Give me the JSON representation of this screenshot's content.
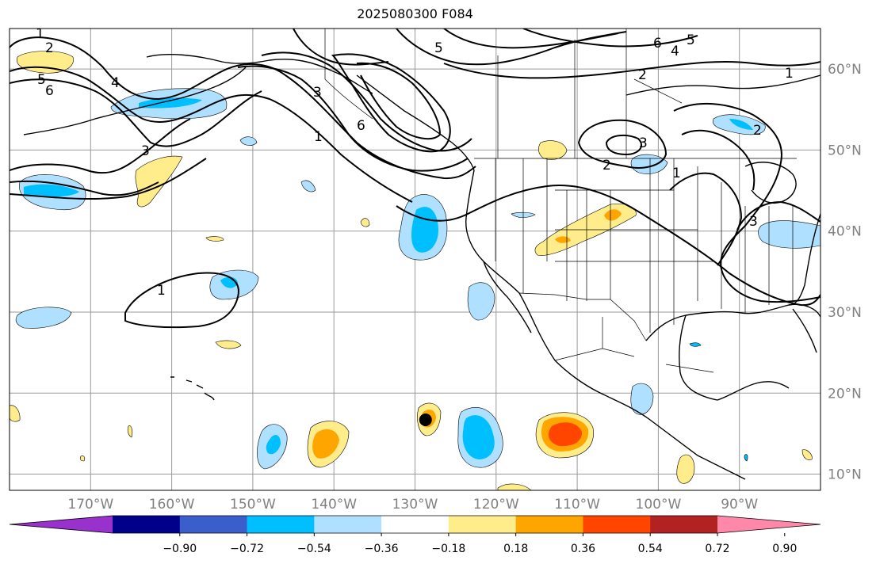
{
  "title": "2025080300 F084",
  "map": {
    "projection": "PlateCarree",
    "lon_range": [
      -180,
      -80
    ],
    "lat_range": [
      8,
      65
    ],
    "lon_ticks": [
      "170°W",
      "160°W",
      "150°W",
      "140°W",
      "130°W",
      "120°W",
      "110°W",
      "100°W",
      "90°W"
    ],
    "lat_ticks": [
      "60°N",
      "50°N",
      "40°N",
      "30°N",
      "20°N",
      "10°N"
    ],
    "gridlines": true,
    "storm_marker": {
      "lon": -128.7,
      "lat": 16.7
    }
  },
  "contour_labels": [
    "1",
    "2",
    "5",
    "6",
    "4",
    "3",
    "3",
    "6",
    "1",
    "5",
    "6",
    "4",
    "5",
    "2",
    "1",
    "2",
    "3",
    "2",
    "1",
    "3",
    "1"
  ],
  "colorbar": {
    "tick_labels": [
      "−0.90",
      "−0.72",
      "−0.54",
      "−0.36",
      "−0.18",
      "0.18",
      "0.36",
      "0.54",
      "0.72",
      "0.90"
    ],
    "colors": [
      "#9932cc",
      "#00008b",
      "#3a5fcd",
      "#00bfff",
      "#b0e0ff",
      "#ffffff",
      "#ffec8b",
      "#ffa500",
      "#ff4500",
      "#b22222",
      "#ff88aa"
    ]
  }
}
